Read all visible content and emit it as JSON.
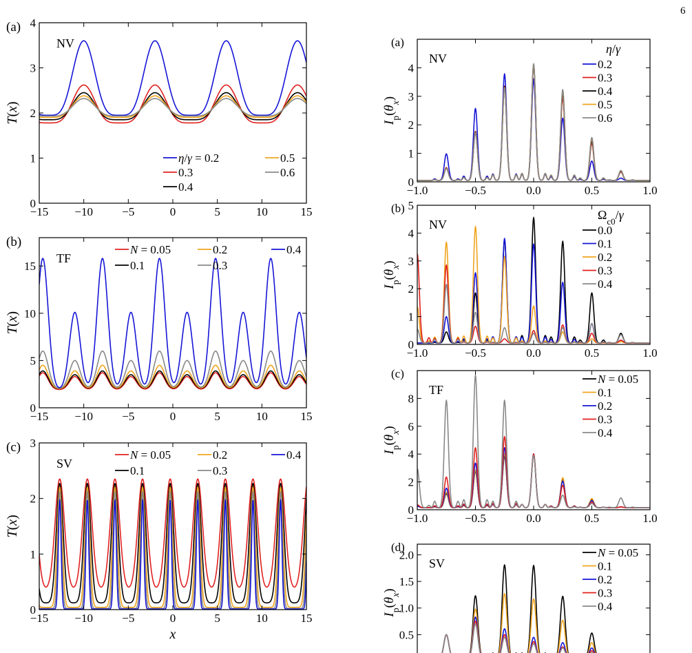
{
  "page": {
    "page_number": "6"
  },
  "colors": {
    "blue": "#1515d6",
    "red": "#e0201f",
    "black": "#000000",
    "orange": "#f0a41e",
    "gray": "#888888"
  },
  "chart_data": [
    {
      "id": "left-a",
      "type": "line",
      "panel_label": "(a)",
      "tag": "NV",
      "xlim": [
        -15,
        15
      ],
      "ylim": [
        0,
        4
      ],
      "xticks": [
        "−15",
        "−10",
        "−5",
        "0",
        "5",
        "10",
        "15"
      ],
      "yticks": [
        "0",
        "1",
        "2",
        "3",
        "4"
      ],
      "ylabel": "T(x)",
      "xlabel": "",
      "legend_placement": "lower-right",
      "period": 8,
      "peak_x": -10,
      "series": [
        {
          "name": "η/γ = 0.2",
          "color": "#1515d6",
          "max": 3.6,
          "min": 1.95
        },
        {
          "name": "0.3",
          "color": "#e0201f",
          "max": 2.62,
          "min": 1.78
        },
        {
          "name": "0.4",
          "color": "#000000",
          "max": 2.45,
          "min": 1.85
        },
        {
          "name": "0.5",
          "color": "#f0a41e",
          "max": 2.38,
          "min": 1.9
        },
        {
          "name": "0.6",
          "color": "#888888",
          "max": 2.32,
          "min": 1.93
        }
      ]
    },
    {
      "id": "left-b",
      "type": "line",
      "panel_label": "(b)",
      "tag": "TF",
      "xlim": [
        -15,
        15
      ],
      "ylim": [
        0,
        18
      ],
      "xticks": [
        "−15",
        "−10",
        "−5",
        "0",
        "5",
        "10",
        "15"
      ],
      "yticks": [
        "0",
        "5",
        "10",
        "15"
      ],
      "ylabel": "T(x)",
      "xlabel": "",
      "legend_placement": "top",
      "series": [
        {
          "name": "N = 0.05",
          "color": "#e0201f",
          "max": 3.7,
          "max2": 3.3,
          "min": 1.9
        },
        {
          "name": "0.1",
          "color": "#000000",
          "max": 3.9,
          "max2": 3.5,
          "min": 2.0
        },
        {
          "name": "0.2",
          "color": "#f0a41e",
          "max": 4.5,
          "max2": 3.9,
          "min": 2.0
        },
        {
          "name": "0.3",
          "color": "#888888",
          "max": 6.0,
          "max2": 5.0,
          "min": 2.0
        },
        {
          "name": "0.4",
          "color": "#1515d6",
          "max": 15.8,
          "max2": 10.1,
          "min": 1.9
        }
      ]
    },
    {
      "id": "left-c",
      "type": "line",
      "panel_label": "(c)",
      "tag": "SV",
      "xlim": [
        -15,
        15
      ],
      "ylim": [
        0,
        3
      ],
      "xticks": [
        "−15",
        "−10",
        "−5",
        "0",
        "5",
        "10",
        "15"
      ],
      "yticks": [
        "0",
        "1",
        "2",
        "3"
      ],
      "ylabel": "T(x)",
      "xlabel": "x",
      "legend_placement": "top",
      "period": 3.1,
      "peak_x": -12.7,
      "series": [
        {
          "name": "N = 0.05",
          "color": "#e0201f",
          "max": 2.35,
          "min": 0.35
        },
        {
          "name": "0.1",
          "color": "#000000",
          "max": 2.27,
          "min": 0.12
        },
        {
          "name": "0.2",
          "color": "#f0a41e",
          "max": 2.2,
          "min": 0.04
        },
        {
          "name": "0.3",
          "color": "#888888",
          "max": 2.12,
          "min": 0.02
        },
        {
          "name": "0.4",
          "color": "#1515d6",
          "max": 1.97,
          "min": 0.01
        }
      ]
    },
    {
      "id": "right-a",
      "type": "line",
      "panel_label": "(a)",
      "tag": "NV",
      "xlim": [
        -1,
        1
      ],
      "ylim": [
        0,
        5
      ],
      "xticks": [
        "−1.0",
        "−0.5",
        "0.0",
        "0.5",
        "1.0"
      ],
      "yticks": [
        "0",
        "1",
        "2",
        "3",
        "4"
      ],
      "ylabel": "Ip(θx)",
      "xlabel": "",
      "legend_title": "η/γ",
      "legend_placement": "top-right",
      "peak_positions": [
        -0.75,
        -0.5,
        -0.25,
        0.0,
        0.25,
        0.5,
        0.75
      ],
      "series": [
        {
          "name": "0.2",
          "color": "#1515d6",
          "peaks": [
            0.93,
            2.52,
            3.73,
            3.55,
            2.18,
            0.68,
            0.08
          ]
        },
        {
          "name": "0.3",
          "color": "#e0201f",
          "peaks": [
            0.45,
            1.72,
            3.3,
            4.02,
            2.9,
            1.3,
            0.3
          ]
        },
        {
          "name": "0.4",
          "color": "#000000",
          "peaks": [
            0.43,
            1.7,
            3.28,
            4.05,
            3.05,
            1.38,
            0.32
          ]
        },
        {
          "name": "0.5",
          "color": "#f0a41e",
          "peaks": [
            0.42,
            1.68,
            3.25,
            4.07,
            3.12,
            1.45,
            0.34
          ]
        },
        {
          "name": "0.6",
          "color": "#888888",
          "peaks": [
            0.41,
            1.66,
            3.22,
            4.08,
            3.18,
            1.5,
            0.35
          ]
        }
      ]
    },
    {
      "id": "right-b",
      "type": "line",
      "panel_label": "(b)",
      "tag": "NV",
      "xlim": [
        -1,
        1
      ],
      "ylim": [
        0,
        5
      ],
      "xticks": [
        "−1.0",
        "−0.5",
        "0.0",
        "0.5",
        "1.0"
      ],
      "yticks": [
        "0",
        "1",
        "2",
        "3",
        "4",
        "5"
      ],
      "ylabel": "Ip(θx)",
      "xlabel": "",
      "legend_title": "Ωc0/γ",
      "legend_placement": "top-right",
      "peak_positions": [
        -1.0,
        -0.75,
        -0.5,
        -0.25,
        0.0,
        0.25,
        0.5,
        0.75
      ],
      "series": [
        {
          "name": "0.0",
          "color": "#000000",
          "peaks": [
            0.0,
            0.4,
            1.8,
            3.7,
            4.5,
            3.65,
            1.8,
            0.35
          ]
        },
        {
          "name": "0.1",
          "color": "#1515d6",
          "peaks": [
            0.0,
            0.95,
            2.52,
            3.75,
            3.55,
            2.18,
            0.7,
            0.1
          ]
        },
        {
          "name": "0.2",
          "color": "#f0a41e",
          "peaks": [
            1.3,
            3.62,
            4.18,
            3.1,
            1.33,
            0.4,
            0.15,
            0.05
          ]
        },
        {
          "name": "0.3",
          "color": "#e0201f",
          "peaks": [
            3.2,
            2.8,
            0.6,
            0.15,
            0.45,
            0.65,
            0.35,
            0.1
          ]
        },
        {
          "name": "0.4",
          "color": "#888888",
          "peaks": [
            0.5,
            2.1,
            1.1,
            0.55,
            0.35,
            0.55,
            0.7,
            0.3
          ]
        }
      ]
    },
    {
      "id": "right-c",
      "type": "line",
      "panel_label": "(c)",
      "tag": "TF",
      "xlim": [
        -1,
        1
      ],
      "ylim": [
        0,
        10
      ],
      "xticks": [
        "−1.0",
        "−0.5",
        "0.0",
        "0.5",
        "1.0"
      ],
      "yticks": [
        "0",
        "2",
        "4",
        "6",
        "8"
      ],
      "ylabel": "Ip(θx)",
      "xlabel": "",
      "legend_placement": "top-right",
      "peak_positions": [
        -1.0,
        -0.75,
        -0.5,
        -0.25,
        0.0,
        0.25,
        0.5,
        0.75
      ],
      "series": [
        {
          "name": "N = 0.05",
          "color": "#000000",
          "peaks": [
            0.1,
            1.0,
            2.6,
            3.7,
            3.85,
            2.05,
            0.6,
            0.05
          ]
        },
        {
          "name": "0.1",
          "color": "#f0a41e",
          "peaks": [
            0.1,
            1.1,
            2.7,
            3.9,
            3.85,
            2.15,
            0.65,
            0.05
          ]
        },
        {
          "name": "0.2",
          "color": "#1515d6",
          "peaks": [
            0.1,
            1.4,
            3.2,
            4.3,
            3.85,
            1.9,
            0.5,
            0.05
          ]
        },
        {
          "name": "0.3",
          "color": "#e0201f",
          "peaks": [
            0.2,
            2.2,
            4.3,
            5.1,
            3.85,
            1.6,
            0.4,
            0.05
          ]
        },
        {
          "name": "0.4",
          "color": "#888888",
          "peaks": [
            2.8,
            7.7,
            9.5,
            7.7,
            3.75,
            0.9,
            0.3,
            0.7
          ]
        }
      ]
    },
    {
      "id": "right-d",
      "type": "line",
      "panel_label": "(d)",
      "tag": "SV",
      "xlim": [
        -1,
        1
      ],
      "ylim": [
        0,
        2.2
      ],
      "xticks": [],
      "yticks": [
        "0.5",
        "1.0",
        "1.5",
        "2.0"
      ],
      "ylabel": "Ip(θx)",
      "xlabel": "",
      "legend_placement": "top-right",
      "peak_positions": [
        -0.75,
        -0.5,
        -0.25,
        0.0,
        0.25,
        0.5
      ],
      "series": [
        {
          "name": "N = 0.05",
          "color": "#000000",
          "peaks": [
            0.45,
            1.18,
            1.76,
            1.75,
            1.17,
            0.48
          ]
        },
        {
          "name": "0.1",
          "color": "#f0a41e",
          "peaks": [
            0.45,
            0.93,
            1.22,
            1.12,
            0.72,
            0.3
          ]
        },
        {
          "name": "0.2",
          "color": "#1515d6",
          "peaks": [
            0.45,
            0.78,
            0.56,
            0.4,
            0.3,
            0.2
          ]
        },
        {
          "name": "0.3",
          "color": "#e0201f",
          "peaks": [
            0.45,
            0.7,
            0.45,
            0.32,
            0.22,
            0.15
          ]
        },
        {
          "name": "0.4",
          "color": "#888888",
          "peaks": [
            0.45,
            0.65,
            0.4,
            0.28,
            0.2,
            0.12
          ]
        }
      ]
    }
  ]
}
